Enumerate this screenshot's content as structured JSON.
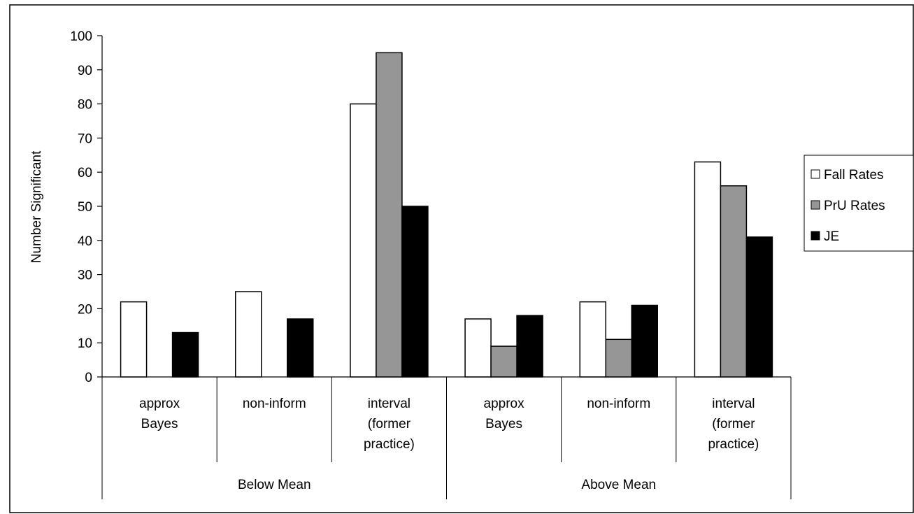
{
  "chart_data": {
    "type": "bar",
    "title": "",
    "xlabel": "",
    "ylabel": "Number Significant",
    "ylim": [
      0,
      100
    ],
    "yticks": [
      0,
      10,
      20,
      30,
      40,
      50,
      60,
      70,
      80,
      90,
      100
    ],
    "grid": false,
    "legend_position": "right",
    "groups": [
      {
        "label": "Below Mean",
        "categories": [
          [
            "approx",
            "Bayes"
          ],
          [
            "non-inform"
          ],
          [
            "interval",
            "(former",
            "practice)"
          ]
        ]
      },
      {
        "label": "Above Mean",
        "categories": [
          [
            "approx",
            "Bayes"
          ],
          [
            "non-inform"
          ],
          [
            "interval",
            "(former",
            "practice)"
          ]
        ]
      }
    ],
    "series": [
      {
        "name": "Fall Rates",
        "color": "#ffffff",
        "values": [
          22,
          25,
          80,
          17,
          22,
          63
        ]
      },
      {
        "name": "PrU Rates",
        "color": "#969696",
        "values": [
          0,
          0,
          95,
          9,
          11,
          56
        ]
      },
      {
        "name": "JE",
        "color": "#000000",
        "values": [
          13,
          17,
          50,
          18,
          21,
          41
        ]
      }
    ]
  }
}
